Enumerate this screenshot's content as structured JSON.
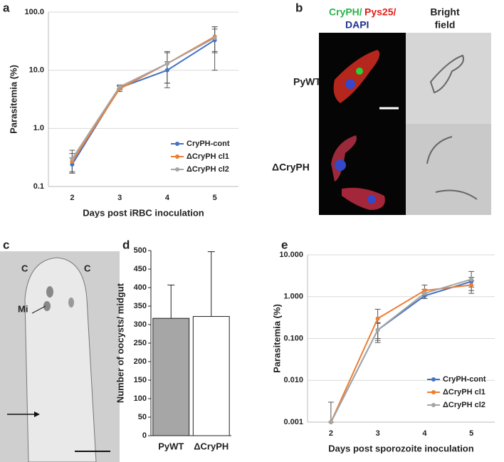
{
  "panel_labels": [
    "a",
    "b",
    "c",
    "d",
    "e"
  ],
  "chart_data": [
    {
      "type": "line",
      "y_label": "Parasitemia (%)",
      "x_label": "Days post iRBC inoculation",
      "categories": [
        "2",
        "3",
        "4",
        "5"
      ],
      "log_scale": true,
      "grid": true,
      "legend": "lower right",
      "ylim": [
        0.1,
        100
      ],
      "yticks": [
        0.1,
        {
          "value": 1,
          "label": "1.0"
        },
        {
          "value": 10,
          "label": "10.0"
        },
        {
          "value": 100,
          "label": "100.0"
        }
      ],
      "series": [
        {
          "name": "CryPH-cont",
          "color": "#4472c4",
          "values": [
            0.24,
            5.0,
            10,
            33
          ],
          "errors": [
            0.07,
            0.4,
            4,
            23
          ]
        },
        {
          "name": "ΔCryPH cl1",
          "color": "#ed7d31",
          "values": [
            0.27,
            4.8,
            13,
            38
          ],
          "errors": [
            0.1,
            0.5,
            7,
            18
          ]
        },
        {
          "name": "ΔCryPH cl2",
          "color": "#a5a5a5",
          "values": [
            0.3,
            5.2,
            13,
            36
          ],
          "errors": [
            0.12,
            0.4,
            8,
            15
          ]
        }
      ]
    },
    {
      "type": "bar",
      "y_label": "Number of oocysts/ midgut",
      "categories": [
        "PyWT",
        "ΔCryPH"
      ],
      "values": [
        317,
        322
      ],
      "errors": [
        90,
        175
      ],
      "colors": [
        "#a6a6a6",
        "#ffffff"
      ],
      "ylim": [
        0,
        500
      ],
      "yticks": [
        0,
        50,
        100,
        150,
        200,
        250,
        300,
        350,
        400,
        450,
        500
      ],
      "grid": false
    },
    {
      "type": "line",
      "y_label": "Parasitemia (%)",
      "x_label": "Days post sporozoite inoculation",
      "categories": [
        "2",
        "3",
        "4",
        "5"
      ],
      "log_scale": true,
      "grid": true,
      "legend": "lower right",
      "ylim": [
        0.001,
        10
      ],
      "yticks": [
        0.001,
        {
          "value": 0.01,
          "label": "0.010"
        },
        {
          "value": 0.1,
          "label": "0.100"
        },
        {
          "value": 1,
          "label": "1.000"
        },
        {
          "value": 10,
          "label": "10.000"
        }
      ],
      "series": [
        {
          "name": "CryPH-cont",
          "color": "#4472c4",
          "values": [
            0.001,
            0.16,
            1.05,
            2.3
          ],
          "errors": [
            0.002,
            0.07,
            0.15,
            0.6
          ]
        },
        {
          "name": "ΔCryPH cl1",
          "color": "#ed7d31",
          "values": [
            0.001,
            0.3,
            1.4,
            1.9
          ],
          "errors": [
            0,
            0.2,
            0.5,
            0.5
          ]
        },
        {
          "name": "ΔCryPH cl2",
          "color": "#a5a5a5",
          "values": [
            0.001,
            0.16,
            1.2,
            2.6
          ],
          "errors": [
            0,
            0.08,
            0.3,
            1.4
          ]
        }
      ]
    }
  ],
  "micrograph_b": {
    "stain_labels": [
      "CryPH/",
      "Pys25/",
      "DAPI"
    ],
    "bright_field": [
      "Bright",
      "field"
    ],
    "rows": [
      "PyWT",
      "ΔCryPH"
    ]
  },
  "micrograph_c": {
    "labels": [
      "C",
      "C",
      "Mi"
    ]
  }
}
